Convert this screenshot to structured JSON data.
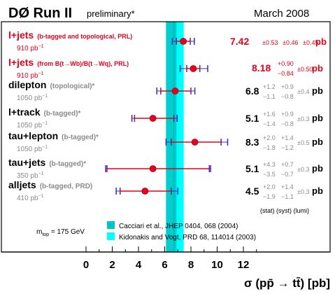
{
  "header": {
    "title": "DØ Run II",
    "subtitle": "preliminary*",
    "date": "March 2008"
  },
  "chart_data": {
    "type": "scatter",
    "xlabel": "σ (pp̄ → tt̄) [pb]",
    "xlim": [
      0,
      13
    ],
    "xticks": [
      0,
      2,
      4,
      6,
      8,
      10,
      12
    ],
    "grid": false,
    "colors": {
      "highlight": "#e8001c",
      "normal": "#000000",
      "note": "#8a8a8a",
      "band_wide": "#00ffff",
      "band_narrow": "#00c4c4",
      "err_syst": "#2b2bd6",
      "err_stat": "#e8001c",
      "err_total": "#7a1e6c"
    },
    "theory_bands": [
      {
        "label": "Cacciari et al., JHEP 0404, 068 (2004)",
        "low": 6.1,
        "high": 6.9,
        "central": 6.7
      },
      {
        "label": "Kidonakis and Vogt, PRD 68, 114014 (2003)",
        "low": 6.1,
        "high": 7.45,
        "central": 6.77
      }
    ],
    "mtop_label": "m",
    "mtop_sub": "top",
    "mtop_value": " = 175 GeV",
    "err_header": "(stat) (syst) (lumi)",
    "measurements": [
      {
        "name": "l+jets",
        "note": "(b-tagged and topological, PRL)",
        "lumi": "910 pb",
        "lumi_exp": "−1",
        "value": 7.42,
        "value_label": "7.42",
        "stat": "±0.53",
        "syst": "±0.46",
        "lumi_err": "±0.45",
        "unit": "pb",
        "stat_up": 0.53,
        "stat_dn": 0.53,
        "syst_up": 0.46,
        "syst_dn": 0.46,
        "total_up": 0.84,
        "total_dn": 0.84,
        "highlight": true
      },
      {
        "name": "l+jets",
        "note": "(from B(t→Wb)/B(t→Wq), PRL)",
        "lumi": "910 pb",
        "lumi_exp": "−1",
        "value": 8.18,
        "value_label": "8.18",
        "syst": "+0.90 / −0.84",
        "syst_up_label": "+0.90",
        "syst_dn_label": "−0.84",
        "lumi_err": "±0.50",
        "unit": "pb",
        "stat_up": 0.5,
        "stat_dn": 0.5,
        "syst_up": 0.9,
        "syst_dn": 0.84,
        "total_up": 1.1,
        "total_dn": 1.0,
        "highlight": true
      },
      {
        "name": "dilepton",
        "note": "(topological)*",
        "lumi": "1050 pb",
        "lumi_exp": "−1",
        "value": 6.8,
        "value_label": "6.8",
        "stat_up_label": "+1.2",
        "stat_dn_label": "−1.1",
        "syst_up_label": "+0.9",
        "syst_dn_label": "−0.8",
        "lumi_err": "±0.4",
        "unit": "pb",
        "stat_up": 1.2,
        "stat_dn": 1.1,
        "syst_up": 0.9,
        "syst_dn": 0.8,
        "total_up": 1.5,
        "total_dn": 1.4,
        "highlight": false
      },
      {
        "name": "l+track",
        "note": "(b-tagged)*",
        "lumi": "1050 pb",
        "lumi_exp": "−1",
        "value": 5.1,
        "value_label": "5.1",
        "stat_up_label": "+1.6",
        "stat_dn_label": "−1.4",
        "syst_up_label": "+0.9",
        "syst_dn_label": "−0.8",
        "lumi_err": "±0.3",
        "unit": "pb",
        "stat_up": 1.6,
        "stat_dn": 1.4,
        "syst_up": 0.9,
        "syst_dn": 0.8,
        "total_up": 1.85,
        "total_dn": 1.6,
        "highlight": false
      },
      {
        "name": "tau+lepton",
        "note": "(b-tagged)*",
        "lumi": "1050 pb",
        "lumi_exp": "−1",
        "value": 8.3,
        "value_label": "8.3",
        "stat_up_label": "+2.0",
        "stat_dn_label": "−1.8",
        "syst_up_label": "+1.4",
        "syst_dn_label": "−1.2",
        "lumi_err": "±0.5",
        "unit": "pb",
        "stat_up": 2.0,
        "stat_dn": 1.8,
        "syst_up": 1.4,
        "syst_dn": 1.2,
        "total_up": 2.5,
        "total_dn": 2.2,
        "highlight": false
      },
      {
        "name": "tau+jets",
        "note": "(b-tagged)*",
        "lumi": "350 pb",
        "lumi_exp": "−1",
        "value": 5.1,
        "value_label": "5.1",
        "stat_up_label": "+4.3",
        "stat_dn_label": "−3.5",
        "syst_up_label": "+0.7",
        "syst_dn_label": "−0.7",
        "lumi_err": "±0.3",
        "unit": "pb",
        "stat_up": 4.3,
        "stat_dn": 3.5,
        "syst_up": 0.7,
        "syst_dn": 0.7,
        "total_up": 4.4,
        "total_dn": 3.6,
        "highlight": false
      },
      {
        "name": "alljets",
        "note": "(b-tagged, PRD)",
        "lumi": "410 pb",
        "lumi_exp": "−1",
        "value": 4.5,
        "value_label": "4.5",
        "stat_up_label": "+2.0",
        "stat_dn_label": "−1.9",
        "syst_up_label": "+1.4",
        "syst_dn_label": "−1.1",
        "lumi_err": "±0.3",
        "unit": "pb",
        "stat_up": 2.0,
        "stat_dn": 1.9,
        "syst_up": 1.4,
        "syst_dn": 1.1,
        "total_up": 2.5,
        "total_dn": 2.2,
        "highlight": false
      }
    ]
  }
}
